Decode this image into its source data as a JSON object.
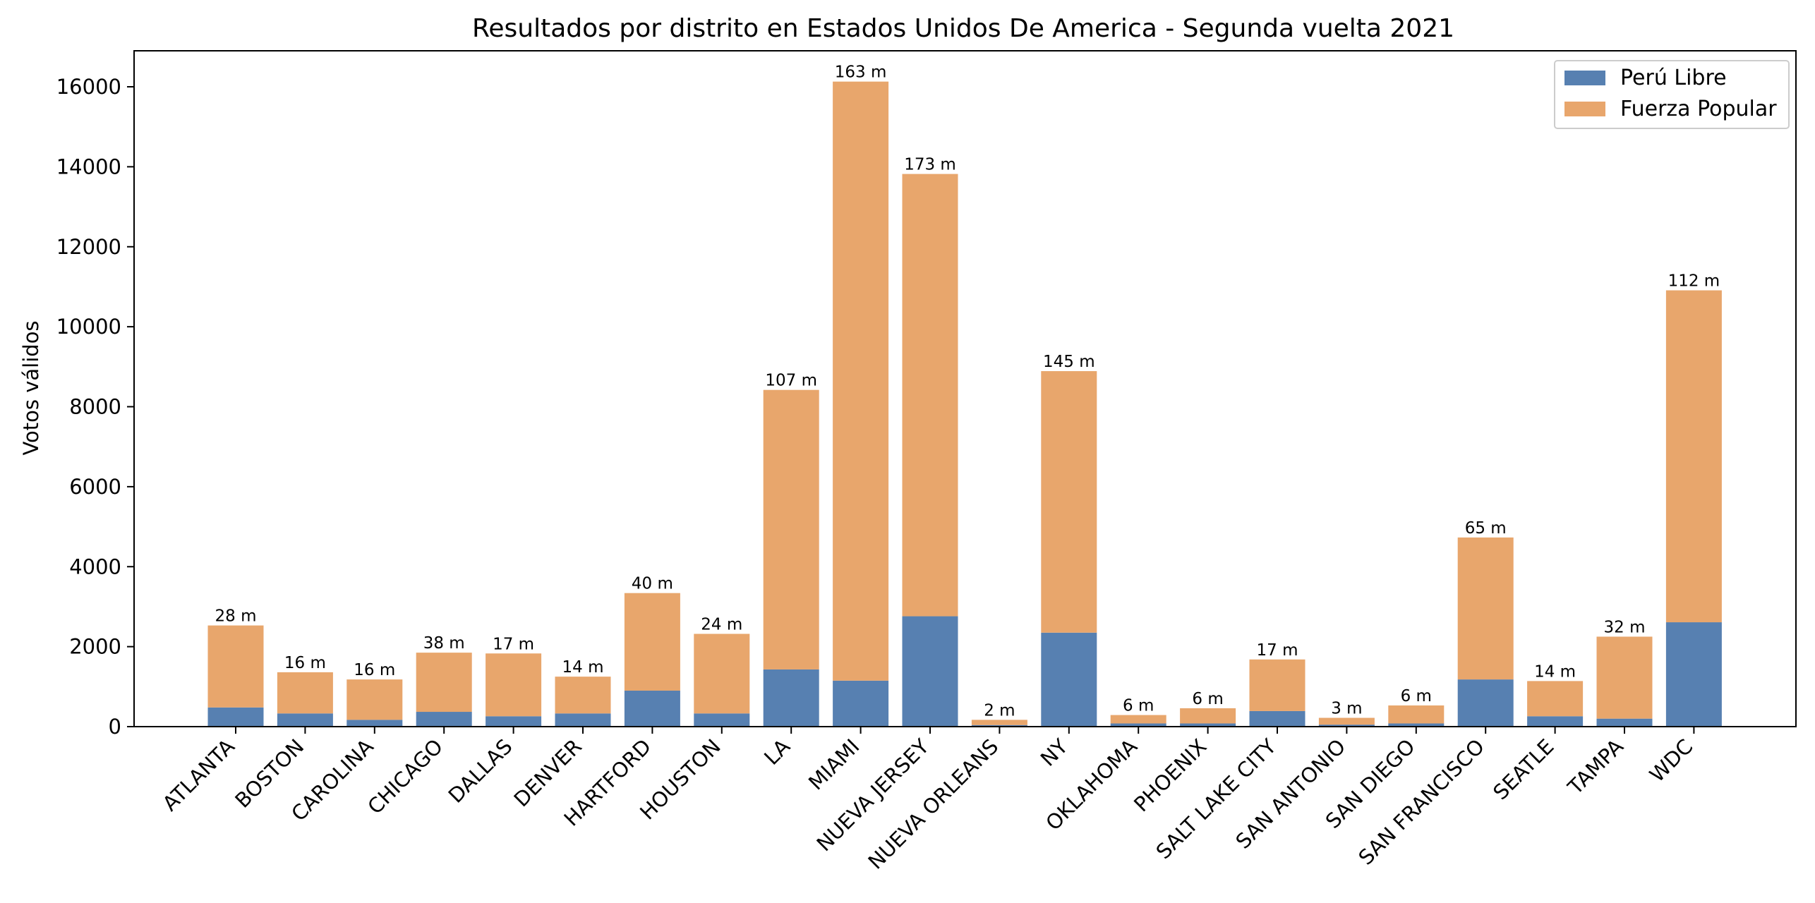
{
  "chart_data": {
    "type": "bar",
    "stacked": true,
    "title": "Resultados por distrito en Estados Unidos De America - Segunda vuelta 2021",
    "xlabel": "",
    "ylabel": "Votos válidos",
    "ylim": [
      0,
      16900
    ],
    "yticks": [
      0,
      2000,
      4000,
      6000,
      8000,
      10000,
      12000,
      14000,
      16000
    ],
    "ytick_labels": [
      "0",
      "2000",
      "4000",
      "6000",
      "8000",
      "10000",
      "12000",
      "14000",
      "16000"
    ],
    "grid": false,
    "legend_position": "top-right",
    "categories": [
      "ATLANTA",
      "BOSTON",
      "CAROLINA",
      "CHICAGO",
      "DALLAS",
      "DENVER",
      "HARTFORD",
      "HOUSTON",
      "LA",
      "MIAMI",
      "NUEVA JERSEY",
      "NUEVA ORLEANS",
      "NY",
      "OKLAHOMA",
      "PHOENIX",
      "SALT LAKE CITY",
      "SAN ANTONIO",
      "SAN DIEGO",
      "SAN FRANCISCO",
      "SEATLE",
      "TAMPA",
      "WDC"
    ],
    "series": [
      {
        "name": "Perú Libre",
        "color": "#5780b1",
        "values": [
          480,
          330,
          170,
          370,
          260,
          330,
          900,
          330,
          1430,
          1150,
          2760,
          40,
          2350,
          80,
          80,
          390,
          50,
          80,
          1180,
          260,
          200,
          2610
        ]
      },
      {
        "name": "Fuerza Popular",
        "color": "#e8a66c",
        "values": [
          2050,
          1030,
          1010,
          1480,
          1570,
          920,
          2440,
          1990,
          6990,
          14980,
          11060,
          130,
          6540,
          210,
          380,
          1290,
          170,
          450,
          3550,
          880,
          2050,
          8300
        ]
      }
    ],
    "bar_labels": [
      "28 m",
      "16 m",
      "16 m",
      "38 m",
      "17 m",
      "14 m",
      "40 m",
      "24 m",
      "107 m",
      "163 m",
      "173 m",
      "2 m",
      "145 m",
      "6 m",
      "6 m",
      "17 m",
      "3 m",
      "6 m",
      "65 m",
      "14 m",
      "32 m",
      "112 m"
    ]
  }
}
